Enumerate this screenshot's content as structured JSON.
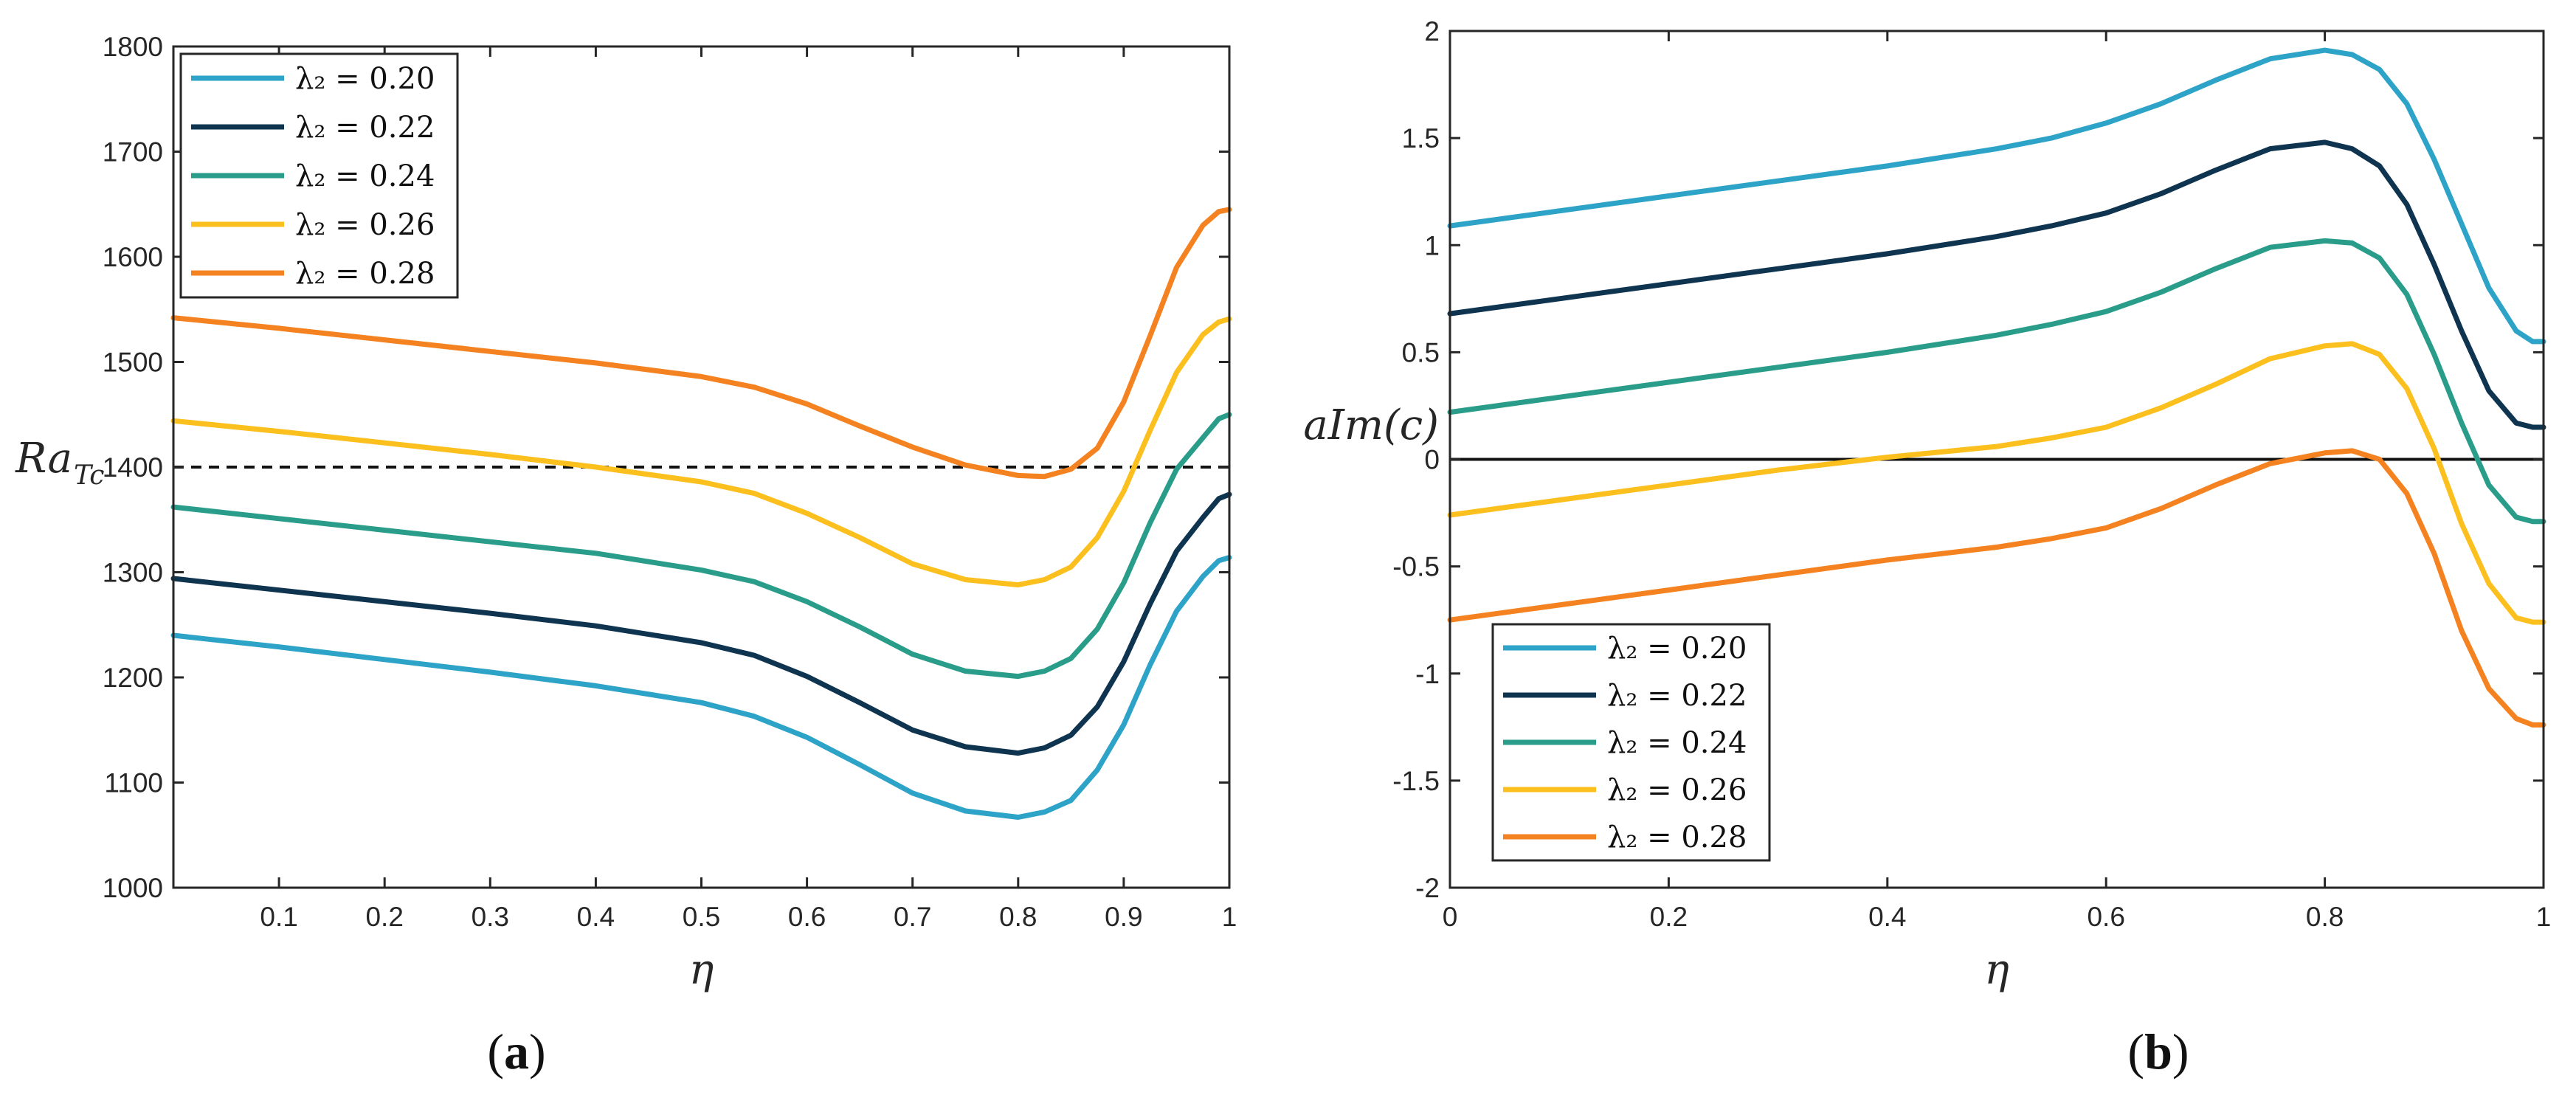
{
  "chart_data": [
    {
      "type": "line",
      "panel_label": "a",
      "xlabel": "η",
      "ylabel": "Ra",
      "ylabel_subscript": "Tc",
      "xlim": [
        0,
        1
      ],
      "ylim": [
        1000,
        1800
      ],
      "xticks": [
        "0.1",
        "0.2",
        "0.3",
        "0.4",
        "0.5",
        "0.6",
        "0.7",
        "0.8",
        "0.9",
        "1"
      ],
      "yticks": [
        "1000",
        "1100",
        "1200",
        "1300",
        "1400",
        "1500",
        "1600",
        "1700",
        "1800"
      ],
      "legend_position": "top-left",
      "reference_line": {
        "y": 1400,
        "style": "dashed"
      },
      "x": [
        0.0,
        0.1,
        0.2,
        0.3,
        0.4,
        0.5,
        0.55,
        0.6,
        0.65,
        0.7,
        0.75,
        0.8,
        0.825,
        0.85,
        0.875,
        0.9,
        0.925,
        0.95,
        0.975,
        0.99,
        1.0
      ],
      "series": [
        {
          "name": "λ₂ = 0.20",
          "color": "#2ea3c8",
          "values": [
            1240,
            1229,
            1217,
            1205,
            1192,
            1176,
            1163,
            1143,
            1117,
            1090,
            1073,
            1067,
            1072,
            1083,
            1112,
            1155,
            1212,
            1263,
            1296,
            1311,
            1314
          ]
        },
        {
          "name": "λ₂ = 0.22",
          "color": "#0f3450",
          "values": [
            1294,
            1283,
            1272,
            1261,
            1249,
            1233,
            1221,
            1201,
            1176,
            1150,
            1134,
            1128,
            1133,
            1145,
            1172,
            1215,
            1270,
            1320,
            1352,
            1370,
            1374
          ]
        },
        {
          "name": "λ₂ = 0.24",
          "color": "#2a9d8a",
          "values": [
            1362,
            1351,
            1340,
            1329,
            1318,
            1302,
            1291,
            1272,
            1248,
            1222,
            1206,
            1201,
            1206,
            1218,
            1246,
            1290,
            1347,
            1398,
            1428,
            1446,
            1450
          ]
        },
        {
          "name": "λ₂ = 0.26",
          "color": "#fbbf1e",
          "values": [
            1444,
            1434,
            1423,
            1412,
            1400,
            1386,
            1375,
            1356,
            1333,
            1308,
            1293,
            1288,
            1293,
            1305,
            1333,
            1377,
            1435,
            1490,
            1526,
            1538,
            1541
          ]
        },
        {
          "name": "λ₂ = 0.28",
          "color": "#f58220",
          "values": [
            1542,
            1532,
            1521,
            1510,
            1499,
            1486,
            1476,
            1460,
            1439,
            1419,
            1402,
            1392,
            1391,
            1398,
            1418,
            1462,
            1525,
            1590,
            1630,
            1643,
            1645
          ]
        }
      ]
    },
    {
      "type": "line",
      "panel_label": "b",
      "xlabel": "η",
      "ylabel": "aIm(c)",
      "xlim": [
        0,
        1
      ],
      "ylim": [
        -2,
        2
      ],
      "xticks": [
        "0",
        "0.2",
        "0.4",
        "0.6",
        "0.8",
        "1"
      ],
      "yticks": [
        "-2",
        "-1.5",
        "-1",
        "-0.5",
        "0",
        "0.5",
        "1",
        "1.5",
        "2"
      ],
      "legend_position": "bottom-left",
      "reference_line": {
        "y": 0,
        "style": "solid"
      },
      "x": [
        0.0,
        0.1,
        0.2,
        0.3,
        0.4,
        0.5,
        0.55,
        0.6,
        0.65,
        0.7,
        0.75,
        0.8,
        0.825,
        0.85,
        0.875,
        0.9,
        0.925,
        0.95,
        0.975,
        0.99,
        1.0
      ],
      "series": [
        {
          "name": "λ₂ = 0.20",
          "color": "#2ea3c8",
          "values": [
            1.09,
            1.16,
            1.23,
            1.3,
            1.37,
            1.45,
            1.5,
            1.57,
            1.66,
            1.77,
            1.87,
            1.91,
            1.89,
            1.82,
            1.66,
            1.4,
            1.1,
            0.8,
            0.6,
            0.55,
            0.55
          ]
        },
        {
          "name": "λ₂ = 0.22",
          "color": "#0f3450",
          "values": [
            0.68,
            0.75,
            0.82,
            0.89,
            0.96,
            1.04,
            1.09,
            1.15,
            1.24,
            1.35,
            1.45,
            1.48,
            1.45,
            1.37,
            1.19,
            0.91,
            0.6,
            0.32,
            0.17,
            0.15,
            0.15
          ]
        },
        {
          "name": "λ₂ = 0.24",
          "color": "#2a9d8a",
          "values": [
            0.22,
            0.29,
            0.36,
            0.43,
            0.5,
            0.58,
            0.63,
            0.69,
            0.78,
            0.89,
            0.99,
            1.02,
            1.01,
            0.94,
            0.77,
            0.49,
            0.17,
            -0.12,
            -0.27,
            -0.29,
            -0.29
          ]
        },
        {
          "name": "λ₂ = 0.26",
          "color": "#fbbf1e",
          "values": [
            -0.26,
            -0.19,
            -0.12,
            -0.05,
            0.01,
            0.06,
            0.1,
            0.15,
            0.24,
            0.35,
            0.47,
            0.53,
            0.54,
            0.49,
            0.33,
            0.05,
            -0.3,
            -0.58,
            -0.74,
            -0.76,
            -0.76
          ]
        },
        {
          "name": "λ₂ = 0.28",
          "color": "#f58220",
          "values": [
            -0.75,
            -0.68,
            -0.61,
            -0.54,
            -0.47,
            -0.41,
            -0.37,
            -0.32,
            -0.23,
            -0.12,
            -0.02,
            0.03,
            0.04,
            0.0,
            -0.16,
            -0.44,
            -0.8,
            -1.07,
            -1.21,
            -1.24,
            -1.24
          ]
        }
      ]
    }
  ]
}
